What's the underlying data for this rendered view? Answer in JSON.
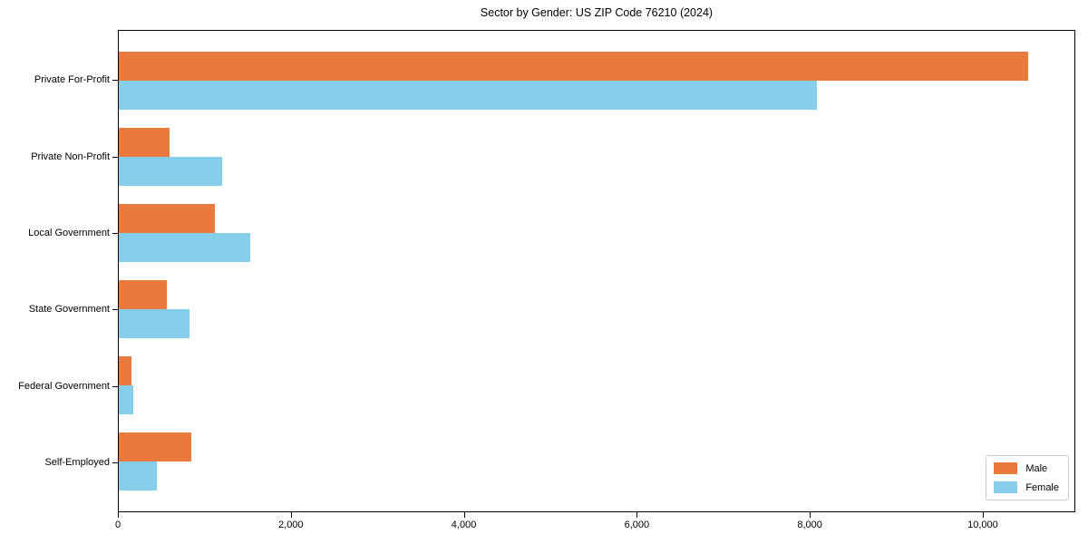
{
  "chart_data": {
    "type": "bar",
    "orientation": "horizontal",
    "title": "Sector by Gender: US ZIP Code 76210 (2024)",
    "categories": [
      "Private For-Profit",
      "Private Non-Profit",
      "Local Government",
      "State Government",
      "Federal Government",
      "Self-Employed"
    ],
    "series": [
      {
        "name": "Male",
        "color": "#ea7a3c",
        "values": [
          10530,
          590,
          1110,
          560,
          150,
          840
        ]
      },
      {
        "name": "Female",
        "color": "#87ceeb",
        "values": [
          8090,
          1200,
          1520,
          820,
          170,
          440
        ]
      }
    ],
    "xlim": [
      0,
      11070
    ],
    "xticks": [
      0,
      2000,
      4000,
      6000,
      8000,
      10000
    ],
    "xtick_labels": [
      "0",
      "2,000",
      "4,000",
      "6,000",
      "8,000",
      "10,000"
    ],
    "xlabel": "",
    "ylabel": "",
    "grid": false,
    "legend_position": "lower right",
    "axis_color": "#000000",
    "background_color": "#ffffff"
  }
}
